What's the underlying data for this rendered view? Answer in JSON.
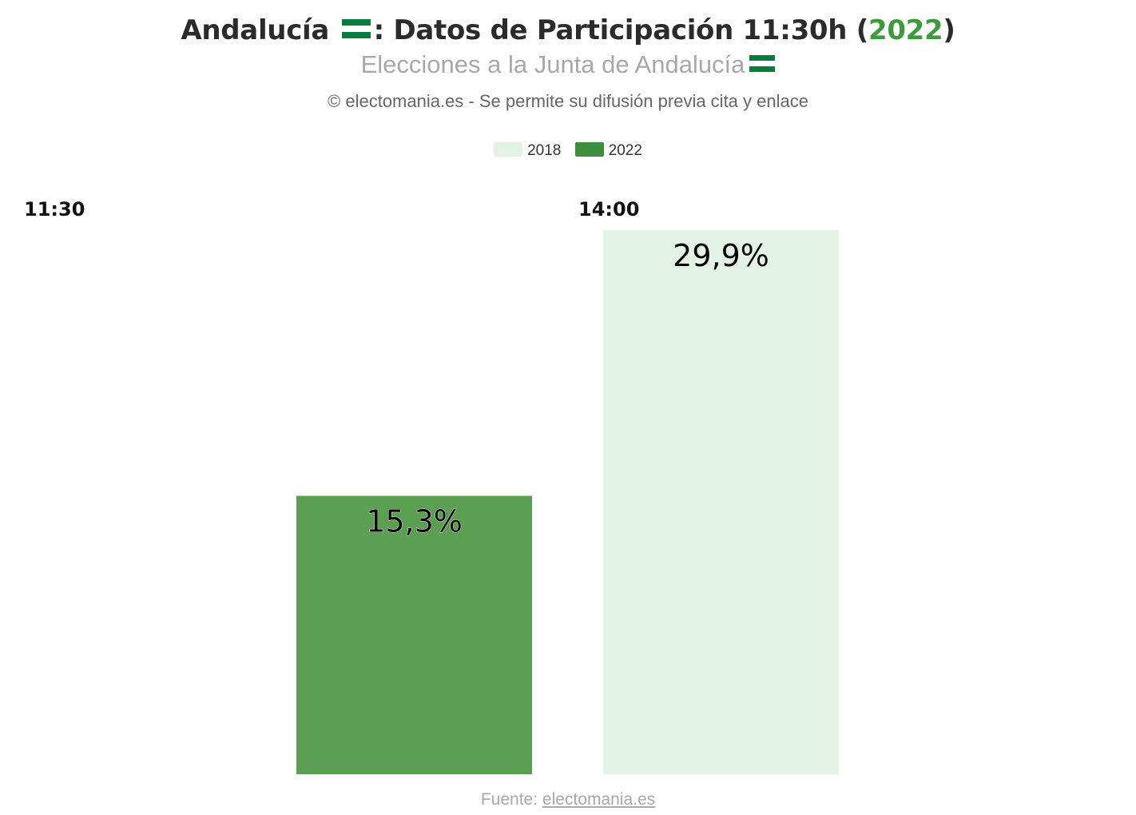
{
  "header": {
    "title_prefix": "Andalucía",
    "title_middle": ": Datos de Participación 11:30h (",
    "title_year": "2022",
    "title_suffix": ")",
    "subtitle": "Elecciones a la Junta de Andalucía",
    "credit": "© electomania.es - Se permite su difusión previa cita y enlace",
    "flag_icon": "andalusia-flag-icon",
    "year_color": "#3f9a3f"
  },
  "footer": {
    "source_label": "Fuente:",
    "source_link": "electomania.es"
  },
  "chart_data": {
    "type": "bar",
    "categories": [
      "11:30",
      "14:00"
    ],
    "series": [
      {
        "name": "2018",
        "color": "#e2f3e5",
        "values": [
          null,
          29.9
        ],
        "labels": [
          "",
          "29,9%"
        ]
      },
      {
        "name": "2022",
        "color": "#5a9f52",
        "values": [
          15.3,
          null
        ],
        "labels": [
          "15,3%",
          ""
        ]
      }
    ],
    "legend": [
      "2018",
      "2022"
    ],
    "legend_colors": [
      "#e2f3e5",
      "#3d8f3d"
    ],
    "legend_position": "top",
    "ylim": [
      0,
      29.9
    ],
    "grid": false
  }
}
